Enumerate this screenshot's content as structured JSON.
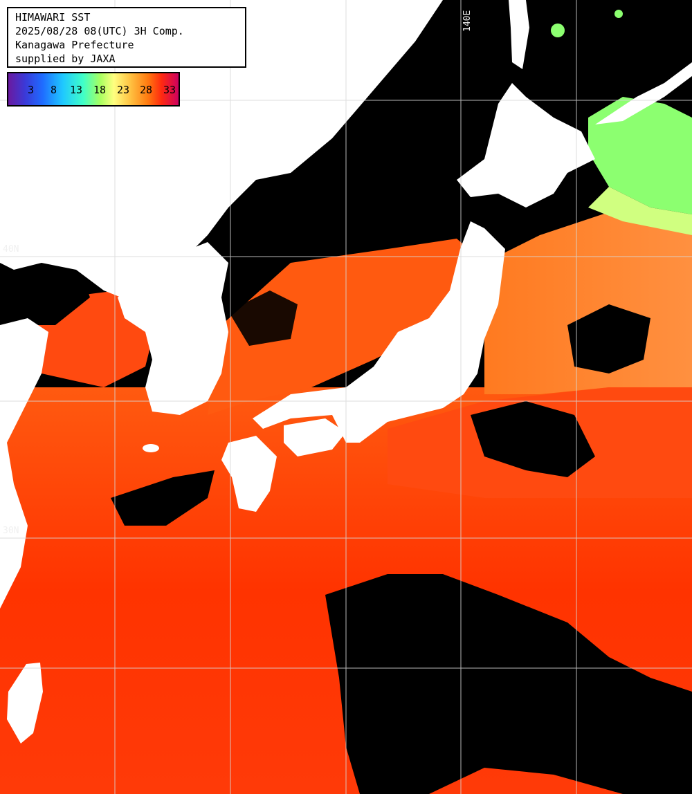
{
  "header": {
    "line1": "HIMAWARI SST",
    "line2": "2025/08/28 08(UTC) 3H Comp.",
    "line3": "Kanagawa Prefecture",
    "line4": "supplied by JAXA"
  },
  "legend": {
    "unit": "",
    "ticks": [
      "3",
      "8",
      "13",
      "18",
      "23",
      "28",
      "33"
    ]
  },
  "grid_labels": {
    "lon_140": "140E",
    "lat_40": "40N",
    "lat_30": "30N"
  },
  "colors": {
    "ocean_warm": "#ff2a00",
    "ocean_mid": "#ff6a1a",
    "ocean_cool": "#ffa050",
    "ocean_cold": "#8cff70",
    "land": "#ffffff",
    "cloud_missing": "#000000",
    "grid": "#d8d8d8"
  }
}
